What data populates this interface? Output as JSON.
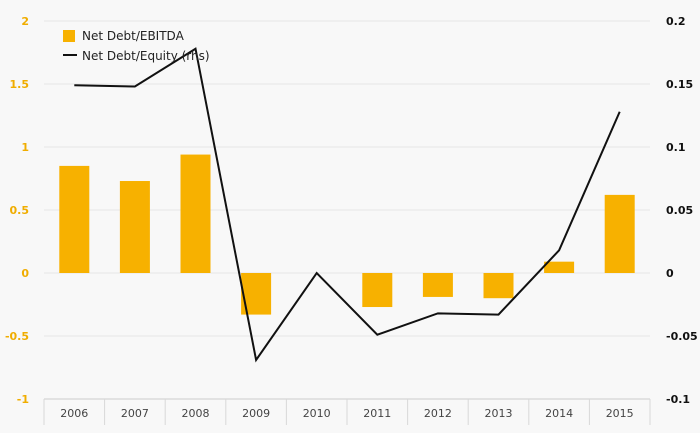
{
  "chart_data": {
    "type": "bar",
    "categories": [
      "2006",
      "2007",
      "2008",
      "2009",
      "2010",
      "2011",
      "2012",
      "2013",
      "2014",
      "2015"
    ],
    "series": [
      {
        "name": "Net Debt/EBITDA",
        "type": "bar",
        "axis": "left",
        "color": "#f7b100",
        "values": [
          0.85,
          0.73,
          0.94,
          -0.33,
          0.0,
          -0.27,
          -0.19,
          -0.2,
          0.09,
          0.62
        ]
      },
      {
        "name": "Net Debt/Equity (rhs)",
        "type": "line",
        "axis": "right",
        "color": "#111111",
        "values": [
          0.149,
          0.148,
          0.178,
          -0.069,
          0.0,
          -0.049,
          -0.032,
          -0.033,
          0.018,
          0.128
        ]
      }
    ],
    "y_left": {
      "min": -1,
      "max": 2,
      "ticks": [
        -1,
        -0.5,
        0,
        0.5,
        1,
        1.5,
        2
      ]
    },
    "y_right": {
      "min": -0.1,
      "max": 0.2,
      "ticks": [
        -0.1,
        -0.05,
        0,
        0.05,
        0.1,
        0.15,
        0.2
      ]
    },
    "legend_position": "top-left",
    "grid": true
  }
}
